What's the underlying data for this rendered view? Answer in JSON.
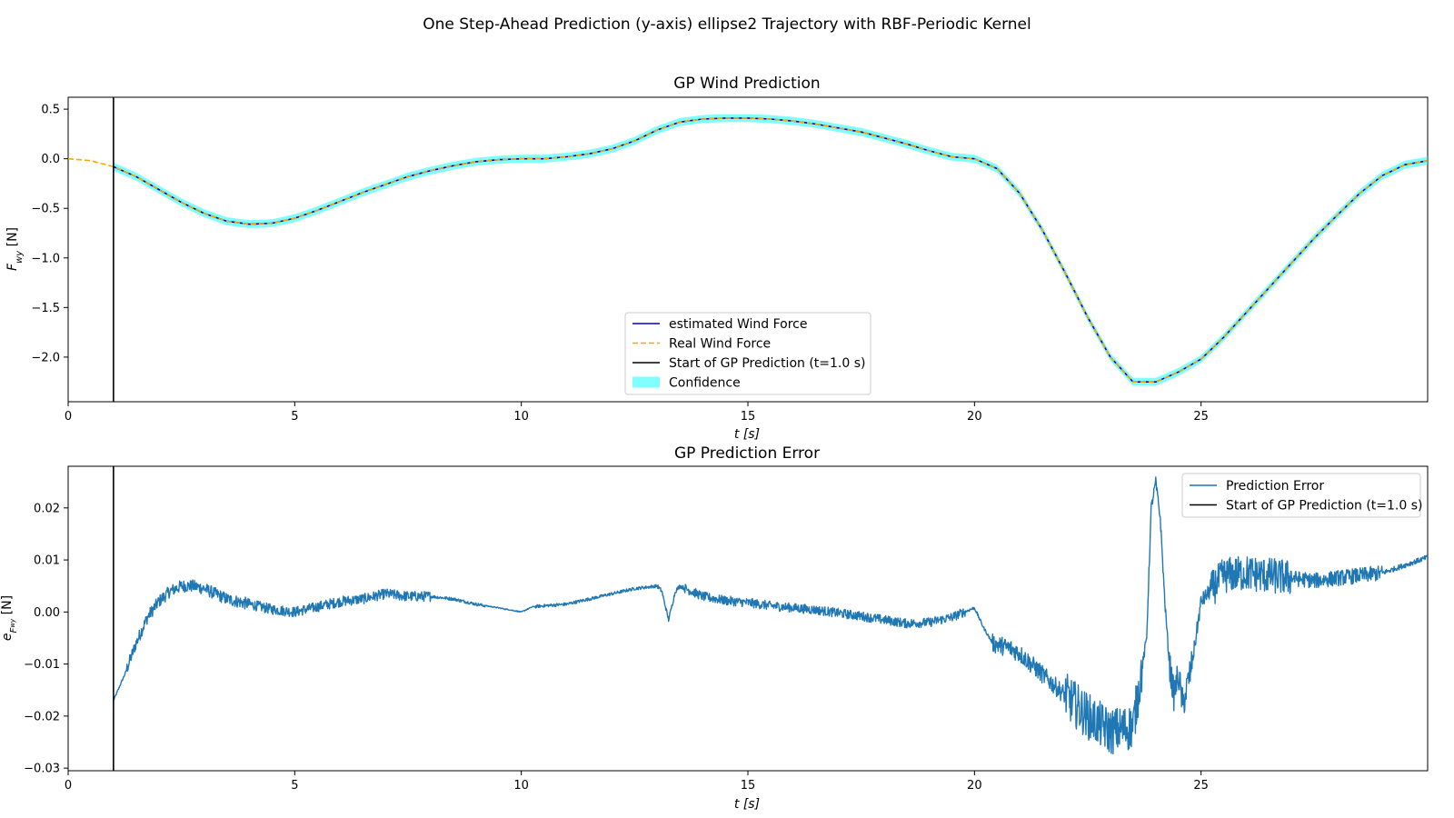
{
  "figure": {
    "title": "One Step-Ahead Prediction (y-axis) ellipse2 Trajectory with RBF-Periodic Kernel"
  },
  "colors": {
    "estimated": "#0000cc",
    "real": "#ffa500",
    "start_line": "#000000",
    "confidence": "#00ffff",
    "error": "#1f77b4"
  },
  "chart_data": [
    {
      "type": "line",
      "title": "GP Wind Prediction",
      "xlabel": "t [s]",
      "ylabel": "F_wy [N]",
      "xlim": [
        0,
        30
      ],
      "ylim": [
        -2.45,
        0.62
      ],
      "xticks": [
        0,
        5,
        10,
        15,
        20,
        25
      ],
      "xtick_labels": [
        "0",
        "5",
        "10",
        "15",
        "20",
        "25"
      ],
      "yticks": [
        0.5,
        0.0,
        -0.5,
        -1.0,
        -1.5,
        -2.0
      ],
      "ytick_labels": [
        "0.5",
        "0.0",
        "−0.5",
        "−1.0",
        "−1.5",
        "−2.0"
      ],
      "legend_position": "lower-center",
      "start_time": 1.0,
      "confidence_halfwidth": 0.04,
      "x": [
        0,
        0.5,
        1,
        1.5,
        2,
        2.5,
        3,
        3.5,
        4,
        4.5,
        5,
        5.5,
        6,
        6.5,
        7,
        7.5,
        8,
        8.5,
        9,
        9.5,
        10,
        10.5,
        11,
        11.5,
        12,
        12.5,
        13,
        13.5,
        14,
        14.5,
        15,
        15.5,
        16,
        16.5,
        17,
        17.5,
        18,
        18.5,
        19,
        19.5,
        20,
        20.5,
        21,
        21.5,
        22,
        22.5,
        23,
        23.5,
        24,
        24.5,
        25,
        25.5,
        26,
        26.5,
        27,
        27.5,
        28,
        28.5,
        29,
        29.5,
        30
      ],
      "series": [
        {
          "name": "estimated Wind Force",
          "style": "solid",
          "y": [
            0.0,
            -0.02,
            -0.08,
            -0.18,
            -0.31,
            -0.44,
            -0.55,
            -0.63,
            -0.66,
            -0.65,
            -0.6,
            -0.52,
            -0.43,
            -0.34,
            -0.26,
            -0.18,
            -0.12,
            -0.07,
            -0.03,
            -0.01,
            0.0,
            0.0,
            0.02,
            0.05,
            0.1,
            0.18,
            0.29,
            0.37,
            0.4,
            0.41,
            0.41,
            0.4,
            0.38,
            0.35,
            0.31,
            0.27,
            0.21,
            0.15,
            0.08,
            0.02,
            0.0,
            -0.1,
            -0.35,
            -0.72,
            -1.15,
            -1.6,
            -2.0,
            -2.25,
            -2.25,
            -2.15,
            -2.02,
            -1.8,
            -1.55,
            -1.3,
            -1.05,
            -0.8,
            -0.57,
            -0.35,
            -0.17,
            -0.06,
            -0.02
          ]
        },
        {
          "name": "Real Wind Force",
          "style": "dashed",
          "y": [
            0.0,
            -0.02,
            -0.08,
            -0.18,
            -0.31,
            -0.44,
            -0.55,
            -0.63,
            -0.66,
            -0.65,
            -0.6,
            -0.52,
            -0.43,
            -0.34,
            -0.26,
            -0.18,
            -0.12,
            -0.07,
            -0.03,
            -0.01,
            0.0,
            0.0,
            0.02,
            0.05,
            0.1,
            0.18,
            0.29,
            0.37,
            0.4,
            0.41,
            0.41,
            0.4,
            0.38,
            0.35,
            0.31,
            0.27,
            0.21,
            0.15,
            0.08,
            0.02,
            0.0,
            -0.1,
            -0.35,
            -0.72,
            -1.15,
            -1.6,
            -2.0,
            -2.25,
            -2.25,
            -2.15,
            -2.02,
            -1.8,
            -1.55,
            -1.3,
            -1.05,
            -0.8,
            -0.57,
            -0.35,
            -0.17,
            -0.06,
            -0.02
          ]
        }
      ],
      "legend": [
        {
          "label": "estimated Wind Force",
          "kind": "line"
        },
        {
          "label": "Real Wind Force",
          "kind": "dashed"
        },
        {
          "label": "Start of GP Prediction (t=1.0 s)",
          "kind": "vline"
        },
        {
          "label": "Confidence",
          "kind": "patch"
        }
      ]
    },
    {
      "type": "line",
      "title": "GP Prediction Error",
      "xlabel": "t [s]",
      "ylabel": "e_Fwy [N]",
      "xlim": [
        0,
        30
      ],
      "ylim": [
        -0.0305,
        0.028
      ],
      "xticks": [
        0,
        5,
        10,
        15,
        20,
        25
      ],
      "xtick_labels": [
        "0",
        "5",
        "10",
        "15",
        "20",
        "25"
      ],
      "yticks": [
        0.02,
        0.01,
        0.0,
        -0.01,
        -0.02,
        -0.03
      ],
      "ytick_labels": [
        "0.02",
        "0.01",
        "0.00",
        "−0.01",
        "−0.02",
        "−0.03"
      ],
      "legend_position": "upper-right",
      "start_time": 1.0,
      "series": [
        {
          "name": "Prediction Error",
          "x": [
            1.0,
            1.25,
            1.5,
            1.75,
            2.0,
            2.25,
            2.5,
            2.75,
            3.0,
            3.5,
            4.0,
            4.5,
            5.0,
            5.5,
            6.0,
            6.5,
            7.0,
            7.5,
            8.0,
            8.5,
            9.0,
            9.5,
            10.0,
            10.25,
            10.5,
            11.0,
            11.5,
            12.0,
            12.5,
            13.0,
            13.1,
            13.25,
            13.4,
            13.5,
            14.0,
            14.5,
            15.0,
            15.5,
            16.0,
            16.5,
            17.0,
            17.5,
            18.0,
            18.5,
            19.0,
            19.5,
            20.0,
            20.2,
            20.4,
            20.6,
            20.8,
            21.0,
            21.5,
            22.0,
            22.5,
            23.0,
            23.5,
            23.8,
            23.9,
            24.0,
            24.1,
            24.2,
            24.3,
            24.4,
            24.5,
            24.6,
            24.8,
            25.0,
            25.5,
            26.0,
            26.5,
            27.0,
            27.5,
            28.0,
            28.5,
            29.0,
            29.5,
            30.0
          ],
          "y": [
            -0.017,
            -0.012,
            -0.006,
            -0.001,
            0.002,
            0.004,
            0.005,
            0.005,
            0.0045,
            0.0025,
            0.0015,
            0.0005,
            0.0,
            0.001,
            0.002,
            0.0025,
            0.0035,
            0.003,
            0.003,
            0.0025,
            0.0015,
            0.0008,
            0.0,
            0.001,
            0.0012,
            0.0015,
            0.0025,
            0.0035,
            0.0045,
            0.005,
            0.004,
            -0.0015,
            0.004,
            0.005,
            0.003,
            0.0022,
            0.0018,
            0.0012,
            0.0008,
            0.0004,
            -0.0002,
            -0.0008,
            -0.0015,
            -0.0022,
            -0.002,
            -0.001,
            0.0008,
            -0.003,
            -0.006,
            -0.0065,
            -0.007,
            -0.008,
            -0.012,
            -0.016,
            -0.02,
            -0.023,
            -0.022,
            -0.005,
            0.02,
            0.025,
            0.018,
            0.002,
            -0.01,
            -0.016,
            -0.012,
            -0.018,
            -0.01,
            0.002,
            0.007,
            0.0075,
            0.007,
            0.0065,
            0.006,
            0.0065,
            0.007,
            0.0075,
            0.009,
            0.0105
          ]
        }
      ],
      "legend": [
        {
          "label": "Prediction Error",
          "kind": "line"
        },
        {
          "label": "Start of GP Prediction (t=1.0 s)",
          "kind": "vline"
        }
      ]
    }
  ]
}
